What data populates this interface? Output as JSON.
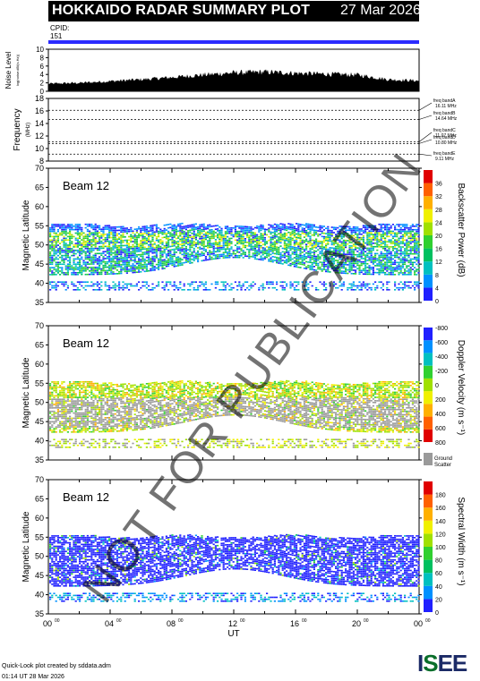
{
  "header": {
    "title": "HOKKAIDO RADAR SUMMARY PLOT",
    "date": "27 Mar 2026",
    "cpid_label": "CPID:",
    "cpid_value": "151"
  },
  "footer": {
    "line1": "Quick-Look plot created by sddata.adm",
    "line2": "01:14 UT 28 Mar 2026"
  },
  "watermark": "NOT FOR PUBLICATION",
  "logo": "ISEE",
  "colors": {
    "accent_bar": "#2b2bff",
    "ground_scatter": "#9a9a9a"
  },
  "chart_data": [
    {
      "type": "area",
      "name": "noise",
      "ylabel": "Noise Level",
      "ylabel_units": "log(noise:dB/(s.Hz))",
      "ylim": [
        0,
        10
      ],
      "yticks": [
        "0",
        "2",
        "4",
        "6",
        "8",
        "10"
      ],
      "x_hours": [
        0,
        2,
        4,
        6,
        8,
        10,
        12,
        14,
        16,
        18,
        20,
        22,
        24
      ],
      "values": [
        1.8,
        2.0,
        2.4,
        2.8,
        3.3,
        3.9,
        4.4,
        4.6,
        4.3,
        4.1,
        3.9,
        2.8,
        2.5
      ]
    },
    {
      "type": "line",
      "name": "frequency",
      "ylabel": "Frequency",
      "ylabel_units": "(MHz)",
      "ylim": [
        8,
        18
      ],
      "yticks": [
        "8",
        "10",
        "12",
        "14",
        "16",
        "18"
      ],
      "bands": [
        {
          "label": "freq bandA",
          "value": "16.11 MHz",
          "mhz": 16.11
        },
        {
          "label": "freq bandB",
          "value": "14.64 MHz",
          "mhz": 14.64
        },
        {
          "label": "freq bandC",
          "value": "11.07 MHz",
          "mhz": 11.07
        },
        {
          "label": "freq bandD",
          "value": "10.80 MHz",
          "mhz": 10.8
        },
        {
          "label": "freq bandE",
          "value": "9.11 MHz",
          "mhz": 9.11
        }
      ]
    },
    {
      "type": "heatmap",
      "name": "power",
      "beam": "Beam 12",
      "ylabel": "Magnetic Latitude",
      "ylim": [
        35,
        70
      ],
      "yticks": [
        "35",
        "40",
        "45",
        "50",
        "55",
        "60",
        "65",
        "70"
      ],
      "colorbar_label": "Backscatter Power (dB)",
      "colorbar_ticks": [
        "0",
        "4",
        "8",
        "12",
        "16",
        "20",
        "24",
        "28",
        "32",
        "36"
      ],
      "colorbar_colors": [
        "#2020ff",
        "#0090ff",
        "#00c0c0",
        "#00c060",
        "#30d030",
        "#a0e000",
        "#f0f000",
        "#ffb000",
        "#ff6000",
        "#e00000"
      ]
    },
    {
      "type": "heatmap",
      "name": "velocity",
      "beam": "Beam 12",
      "ylabel": "Magnetic Latitude",
      "ylim": [
        35,
        70
      ],
      "yticks": [
        "35",
        "40",
        "45",
        "50",
        "55",
        "60",
        "65",
        "70"
      ],
      "colorbar_label": "Doppler Velocity (m s⁻¹)",
      "colorbar_ticks": [
        "-800",
        "-600",
        "-400",
        "-200",
        "0",
        "200",
        "400",
        "600",
        "800"
      ],
      "colorbar_colors": [
        "#e00000",
        "#ff6000",
        "#ffb000",
        "#f0f000",
        "#a0e000",
        "#30d030",
        "#00c0c0",
        "#0090ff",
        "#2020ff"
      ],
      "ground_scatter_label": "Ground Scatter"
    },
    {
      "type": "heatmap",
      "name": "width",
      "beam": "Beam 12",
      "ylabel": "Magnetic Latitude",
      "ylim": [
        35,
        70
      ],
      "yticks": [
        "35",
        "40",
        "45",
        "50",
        "55",
        "60",
        "65",
        "70"
      ],
      "colorbar_label": "Spectral Width (m s⁻¹)",
      "colorbar_ticks": [
        "0",
        "20",
        "40",
        "60",
        "80",
        "100",
        "120",
        "140",
        "160",
        "180"
      ],
      "colorbar_colors": [
        "#2020ff",
        "#0090ff",
        "#00c0c0",
        "#00c060",
        "#30d030",
        "#a0e000",
        "#f0f000",
        "#ffb000",
        "#ff6000",
        "#e00000"
      ],
      "xlabel": "UT",
      "xticks": [
        "00",
        "04",
        "08",
        "12",
        "16",
        "20",
        "00"
      ],
      "xtick_sup": "00"
    }
  ]
}
